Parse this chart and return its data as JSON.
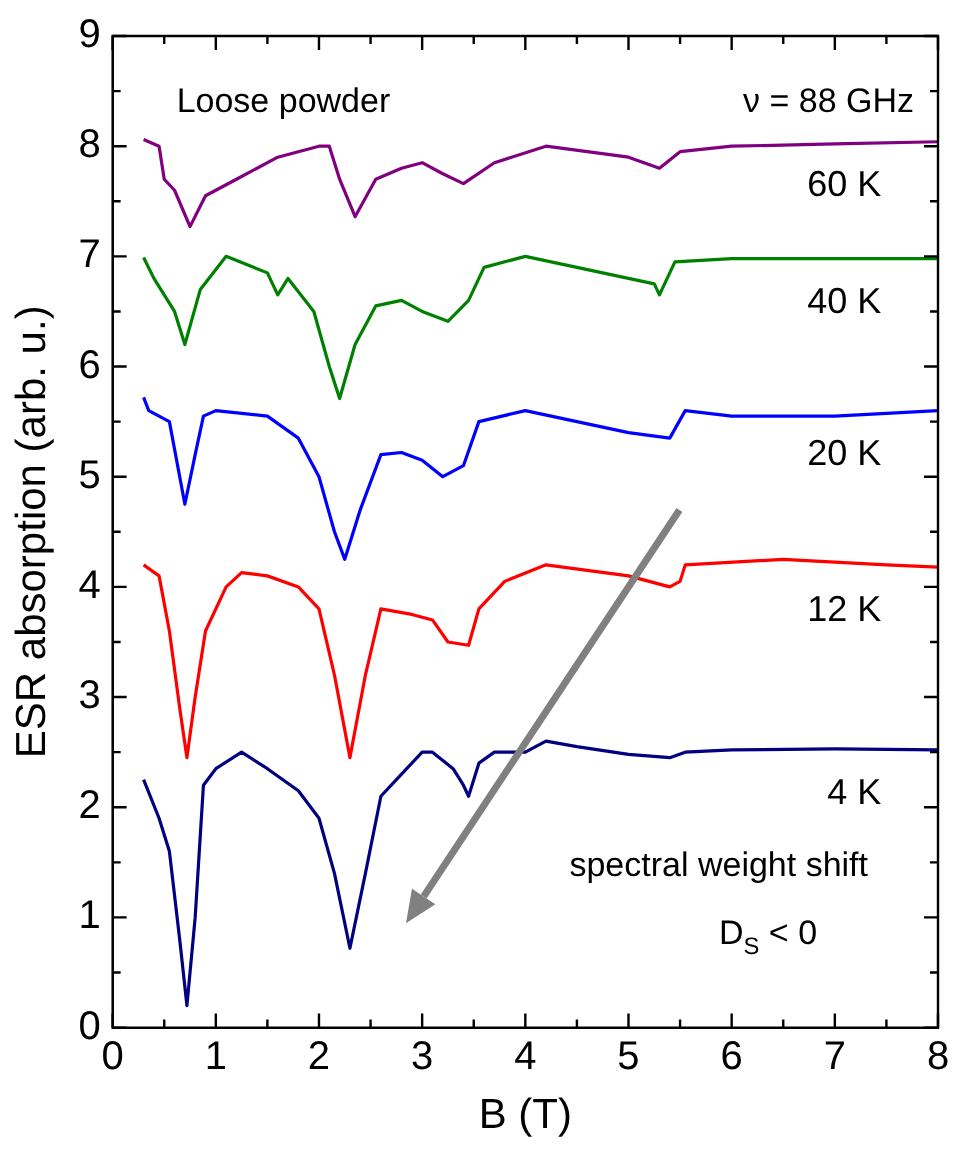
{
  "chart_data": {
    "type": "line",
    "xlabel": "B (T)",
    "ylabel": "ESR absorption (arb. u.)",
    "xlim": [
      0,
      8
    ],
    "xticks": [
      0,
      1,
      2,
      3,
      4,
      5,
      6,
      7,
      8
    ],
    "ylim": [
      0,
      9
    ],
    "yticks": [
      0,
      1,
      2,
      3,
      4,
      5,
      6,
      7,
      8,
      9
    ],
    "grid": false,
    "legend": false,
    "marker": "none",
    "line_style": "solid",
    "annotations": [
      "Loose powder",
      "ν = 88 GHz",
      "spectral weight shift",
      "D$_{S}$ < 0"
    ],
    "series": [
      {
        "name": "4 K",
        "color": "#000080",
        "x": [
          0.3,
          0.45,
          0.55,
          0.65,
          0.72,
          0.8,
          0.88,
          1.0,
          1.25,
          1.5,
          1.8,
          2.0,
          2.15,
          2.3,
          2.45,
          2.6,
          2.8,
          3.0,
          3.1,
          3.3,
          3.4,
          3.45,
          3.55,
          3.7,
          4.0,
          4.2,
          4.5,
          5.0,
          5.4,
          5.55,
          6.0,
          7.0,
          8.0
        ],
        "values": [
          2.25,
          1.9,
          1.6,
          0.8,
          0.2,
          1.0,
          2.2,
          2.35,
          2.5,
          2.35,
          2.15,
          1.9,
          1.4,
          0.72,
          1.4,
          2.1,
          2.3,
          2.5,
          2.5,
          2.35,
          2.2,
          2.1,
          2.4,
          2.5,
          2.5,
          2.6,
          2.55,
          2.48,
          2.45,
          2.5,
          2.52,
          2.53,
          2.52
        ]
      },
      {
        "name": "12 K",
        "color": "#ff0000",
        "x": [
          0.3,
          0.45,
          0.55,
          0.65,
          0.72,
          0.8,
          0.9,
          1.1,
          1.25,
          1.5,
          1.8,
          2.0,
          2.15,
          2.3,
          2.45,
          2.6,
          2.9,
          3.1,
          3.25,
          3.45,
          3.55,
          3.8,
          4.2,
          5.0,
          5.4,
          5.5,
          5.55,
          6.5,
          7.5,
          8.0
        ],
        "values": [
          4.2,
          4.1,
          3.6,
          2.9,
          2.45,
          3.0,
          3.6,
          4.0,
          4.13,
          4.1,
          4.0,
          3.8,
          3.2,
          2.45,
          3.2,
          3.8,
          3.75,
          3.7,
          3.5,
          3.47,
          3.8,
          4.05,
          4.2,
          4.1,
          4.0,
          4.05,
          4.2,
          4.25,
          4.2,
          4.18
        ]
      },
      {
        "name": "20 K",
        "color": "#0000ff",
        "x": [
          0.3,
          0.35,
          0.55,
          0.65,
          0.7,
          0.8,
          0.88,
          1.0,
          1.5,
          1.8,
          2.0,
          2.15,
          2.25,
          2.4,
          2.6,
          2.8,
          3.0,
          3.2,
          3.4,
          3.55,
          4.0,
          4.5,
          5.0,
          5.4,
          5.55,
          6.0,
          7.0,
          8.0
        ],
        "values": [
          5.72,
          5.6,
          5.5,
          5.0,
          4.75,
          5.2,
          5.55,
          5.6,
          5.55,
          5.35,
          5.0,
          4.5,
          4.25,
          4.7,
          5.2,
          5.22,
          5.15,
          5.0,
          5.1,
          5.5,
          5.6,
          5.5,
          5.4,
          5.35,
          5.6,
          5.55,
          5.55,
          5.6
        ]
      },
      {
        "name": "40 K",
        "color": "#008000",
        "x": [
          0.3,
          0.4,
          0.6,
          0.7,
          0.85,
          1.1,
          1.5,
          1.6,
          1.7,
          1.95,
          2.1,
          2.2,
          2.35,
          2.55,
          2.8,
          3.0,
          3.25,
          3.45,
          3.6,
          4.0,
          4.5,
          5.0,
          5.25,
          5.3,
          5.45,
          6.0,
          7.0,
          8.0
        ],
        "values": [
          6.99,
          6.8,
          6.5,
          6.2,
          6.7,
          7.0,
          6.85,
          6.65,
          6.8,
          6.5,
          6.0,
          5.71,
          6.2,
          6.55,
          6.6,
          6.5,
          6.41,
          6.6,
          6.9,
          7.0,
          6.9,
          6.8,
          6.75,
          6.65,
          6.95,
          6.98,
          6.98,
          6.98
        ]
      },
      {
        "name": "60 K",
        "color": "#800080",
        "x": [
          0.3,
          0.45,
          0.5,
          0.6,
          0.75,
          0.9,
          1.2,
          1.6,
          2.0,
          2.1,
          2.2,
          2.35,
          2.55,
          2.8,
          3.0,
          3.2,
          3.4,
          3.7,
          4.2,
          5.0,
          5.3,
          5.5,
          6.0,
          7.0,
          8.0
        ],
        "values": [
          8.06,
          8.0,
          7.7,
          7.6,
          7.27,
          7.55,
          7.7,
          7.9,
          8.0,
          8.0,
          7.7,
          7.36,
          7.7,
          7.8,
          7.85,
          7.75,
          7.66,
          7.85,
          8.0,
          7.9,
          7.8,
          7.95,
          8.0,
          8.02,
          8.04
        ]
      }
    ]
  }
}
